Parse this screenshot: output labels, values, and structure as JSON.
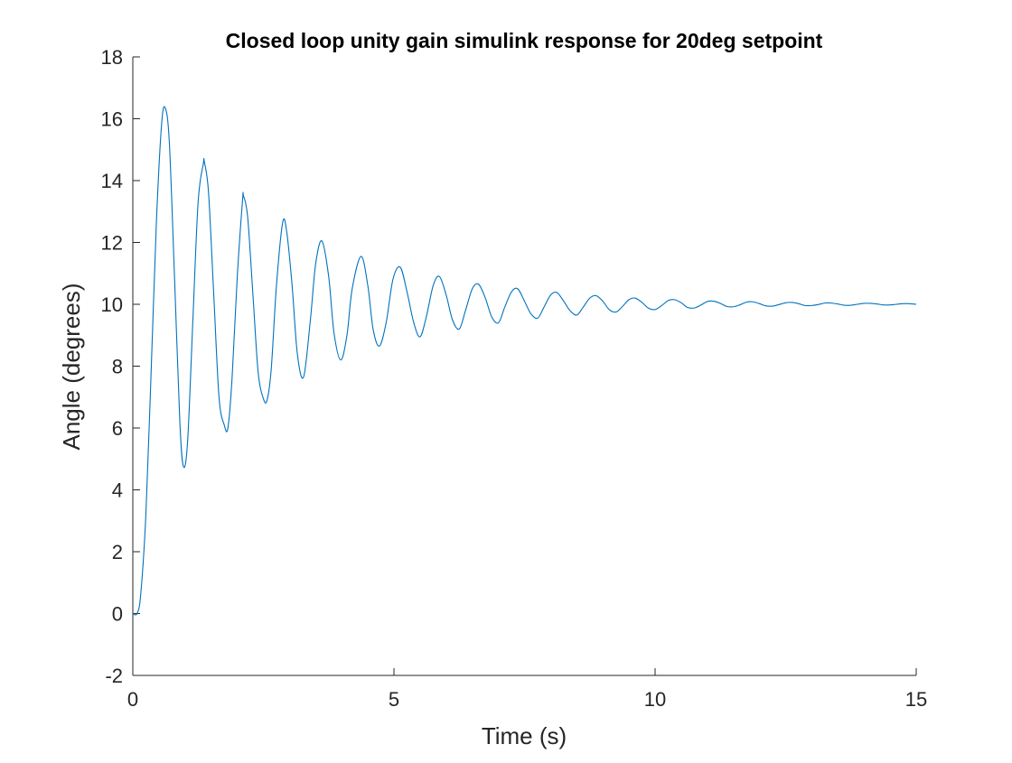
{
  "chart_data": {
    "type": "line",
    "title": "Closed loop unity gain simulink response for 20deg setpoint",
    "xlabel": "Time (s)",
    "ylabel": "Angle (degrees)",
    "xlim": [
      0,
      15
    ],
    "ylim": [
      -2,
      18
    ],
    "xticks": [
      0,
      5,
      10,
      15
    ],
    "xtick_labels": [
      "0",
      "5",
      "10",
      "15"
    ],
    "yticks": [
      -2,
      0,
      2,
      4,
      6,
      8,
      10,
      12,
      14,
      16,
      18
    ],
    "ytick_labels": [
      "-2",
      "0",
      "2",
      "4",
      "6",
      "8",
      "10",
      "12",
      "14",
      "16",
      "18"
    ],
    "grid": false,
    "legend": "none",
    "box": "left-bottom",
    "series": [
      {
        "color": "#0072BD",
        "x": [
          0,
          0.08,
          0.15,
          0.25,
          0.35,
          0.45,
          0.55,
          0.62,
          0.7,
          0.8,
          0.9,
          0.97,
          1.05,
          1.15,
          1.25,
          1.35,
          1.37,
          1.45,
          1.55,
          1.65,
          1.75,
          1.82,
          1.9,
          2.0,
          2.1,
          2.12,
          2.2,
          2.3,
          2.4,
          2.5,
          2.57,
          2.65,
          2.75,
          2.87,
          2.95,
          3.05,
          3.15,
          3.27,
          3.4,
          3.5,
          3.62,
          3.75,
          3.85,
          3.98,
          4.1,
          4.2,
          4.37,
          4.5,
          4.6,
          4.72,
          4.85,
          4.98,
          5.12,
          5.25,
          5.38,
          5.5,
          5.62,
          5.75,
          5.87,
          6.0,
          6.12,
          6.25,
          6.37,
          6.5,
          6.62,
          6.75,
          6.87,
          7.0,
          7.12,
          7.25,
          7.37,
          7.5,
          7.62,
          7.75,
          7.87,
          8.0,
          8.12,
          8.25,
          8.37,
          8.5,
          8.62,
          8.75,
          8.87,
          9.0,
          9.12,
          9.25,
          9.37,
          9.5,
          9.62,
          9.75,
          9.87,
          10.0,
          10.12,
          10.25,
          10.37,
          10.5,
          10.62,
          10.75,
          10.87,
          11.0,
          11.12,
          11.25,
          11.37,
          11.5,
          11.62,
          11.75,
          11.87,
          12.0,
          12.12,
          12.25,
          12.37,
          12.5,
          12.62,
          12.75,
          12.87,
          13.0,
          13.12,
          13.25,
          13.37,
          13.5,
          13.62,
          13.75,
          13.87,
          14.0,
          14.12,
          14.25,
          14.37,
          14.5,
          14.62,
          14.75,
          14.87,
          15.0
        ],
        "y": [
          0,
          0.0,
          0.6,
          3.2,
          7.8,
          12.6,
          15.8,
          16.35,
          15.2,
          10.8,
          6.2,
          4.75,
          5.6,
          9.5,
          13.3,
          14.55,
          14.6,
          13.6,
          10.3,
          7.0,
          6.1,
          6.0,
          7.6,
          10.9,
          13.35,
          13.5,
          12.8,
          10.3,
          7.8,
          6.95,
          6.9,
          7.9,
          10.6,
          12.65,
          12.3,
          10.6,
          8.4,
          7.65,
          9.5,
          11.3,
          12.05,
          10.9,
          9.1,
          8.2,
          9.0,
          10.5,
          11.55,
          10.6,
          9.2,
          8.65,
          9.4,
          10.8,
          11.2,
          10.4,
          9.4,
          8.95,
          9.6,
          10.6,
          10.9,
          10.3,
          9.5,
          9.2,
          9.8,
          10.5,
          10.65,
          10.2,
          9.6,
          9.4,
          9.9,
          10.4,
          10.5,
          10.1,
          9.7,
          9.55,
          9.9,
          10.3,
          10.38,
          10.1,
          9.8,
          9.65,
          9.9,
          10.2,
          10.28,
          10.1,
          9.83,
          9.75,
          9.92,
          10.15,
          10.2,
          10.06,
          9.88,
          9.83,
          9.95,
          10.12,
          10.15,
          10.05,
          9.9,
          9.88,
          9.97,
          10.09,
          10.1,
          10.03,
          9.93,
          9.92,
          9.98,
          10.07,
          10.08,
          10.02,
          9.95,
          9.94,
          9.99,
          10.05,
          10.06,
          10.02,
          9.96,
          9.96,
          9.99,
          10.04,
          10.04,
          10.01,
          9.97,
          9.97,
          10.0,
          10.03,
          10.03,
          10.01,
          9.98,
          9.98,
          10.0,
          10.02,
          10.02,
          10.0
        ]
      }
    ]
  }
}
